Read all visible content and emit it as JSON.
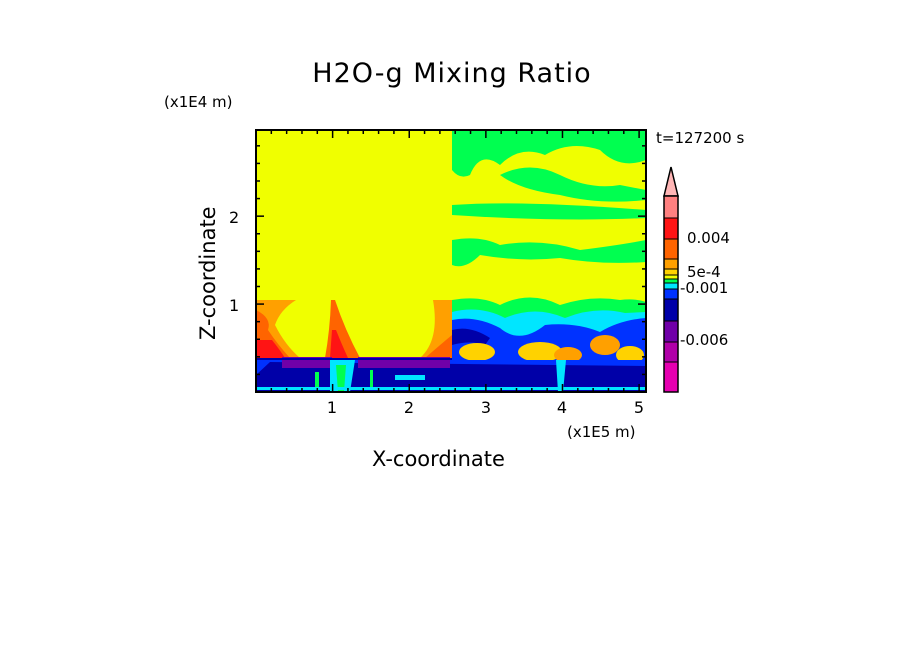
{
  "chart_data": {
    "type": "heatmap",
    "title": "H2O-g Mixing Ratio",
    "xlabel": "X-coordinate",
    "ylabel": "Z-coordinate",
    "x_unit": "(x1E5 m)",
    "y_unit": "(x1E4 m)",
    "time_label": "t=127200 s",
    "xlim": [
      0,
      5.09
    ],
    "ylim": [
      0,
      2.98
    ],
    "x_ticks": [
      "1",
      "2",
      "3",
      "4",
      "5"
    ],
    "x_tick_values": [
      1,
      2,
      3,
      4,
      5
    ],
    "y_ticks": [
      "1",
      "2"
    ],
    "y_tick_values": [
      1,
      2
    ],
    "colorbar": {
      "labels": [
        "0.004",
        "5e-4",
        "-0.001",
        "-0.006"
      ],
      "colors_top_to_bottom": [
        "#ff8080",
        "#ff1414",
        "#ff6400",
        "#ffa000",
        "#ffd200",
        "#f0ff00",
        "#00ff50",
        "#00e6ff",
        "#0032ff",
        "#0000a8",
        "#7000a8",
        "#b000a8",
        "#e600b0"
      ],
      "extend_arrow_color": "#ffb6b6"
    }
  }
}
